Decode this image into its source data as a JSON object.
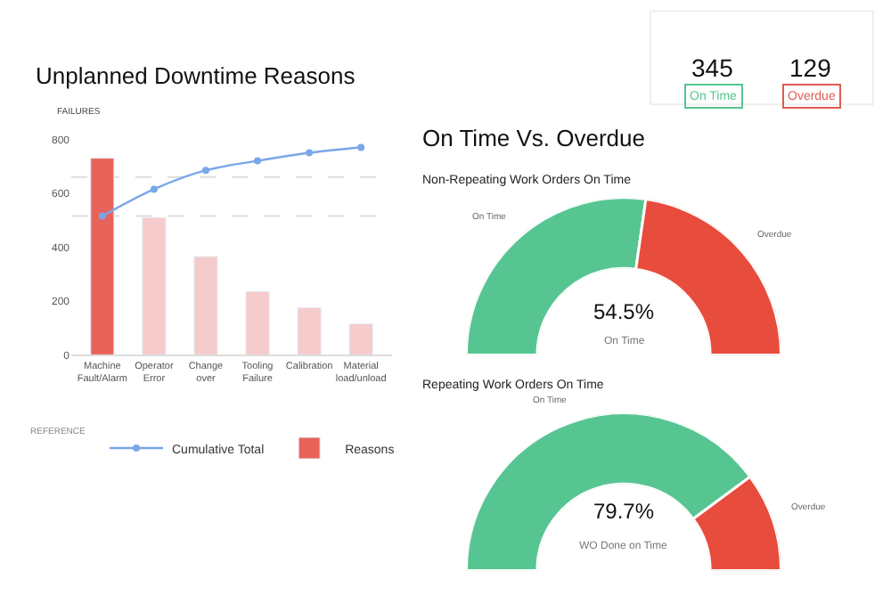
{
  "chart_data": [
    {
      "type": "bar",
      "title": "Unplanned Downtime Reasons",
      "ylabel": "FAILURES",
      "legend_title": "REFERENCE",
      "categories": [
        "Machine Fault/Alarm",
        "Operator Error",
        "Change over",
        "Tooling Failure",
        "Calibration",
        "Material load/unload"
      ],
      "ylim": [
        0,
        800
      ],
      "yticks": [
        0,
        200,
        400,
        600,
        800
      ],
      "grid": false,
      "legend": "bottom",
      "marker": "circle",
      "series": [
        {
          "name": "Cumulative Total",
          "type": "line",
          "color": "#7aa7e8",
          "values": [
            515,
            615,
            685,
            720,
            750,
            770
          ]
        },
        {
          "name": "Reasons",
          "type": "bar",
          "colors": [
            "#e8635a",
            "#f5cccb",
            "#f5cccb",
            "#f5cccb",
            "#f5cccb",
            "#f5cccb"
          ],
          "values": [
            730,
            510,
            365,
            235,
            175,
            115
          ]
        }
      ],
      "ref_lines": [
        {
          "axis": "y",
          "value": 660,
          "color": "#dddddd",
          "line_style": "dashed"
        },
        {
          "axis": "y",
          "value": 515,
          "color": "#dddddd",
          "line_style": "dashed"
        }
      ]
    },
    {
      "type": "donut",
      "title": "On Time Vs. Overdue",
      "subtitle": "Non-Repeating Work Orders On Time",
      "categories": [
        "On Time",
        "Overdue"
      ],
      "values": [
        54.5,
        45.5
      ],
      "colors": [
        "#57c591",
        "#e84c3d"
      ],
      "annotations": [
        "54.5%",
        "On Time"
      ]
    },
    {
      "type": "donut",
      "title": "Repeating Work Orders On Time",
      "categories": [
        "On Time",
        "Overdue"
      ],
      "values": [
        79.7,
        20.3
      ],
      "colors": [
        "#57c591",
        "#e84c3d"
      ],
      "annotations": [
        "79.7%",
        "WO Done on Time"
      ]
    },
    {
      "type": "other",
      "categories": [
        "On Time",
        "Overdue"
      ],
      "values": [
        345,
        129
      ],
      "colors": [
        "#57c591",
        "#e05a50"
      ],
      "data_labels": true
    }
  ]
}
